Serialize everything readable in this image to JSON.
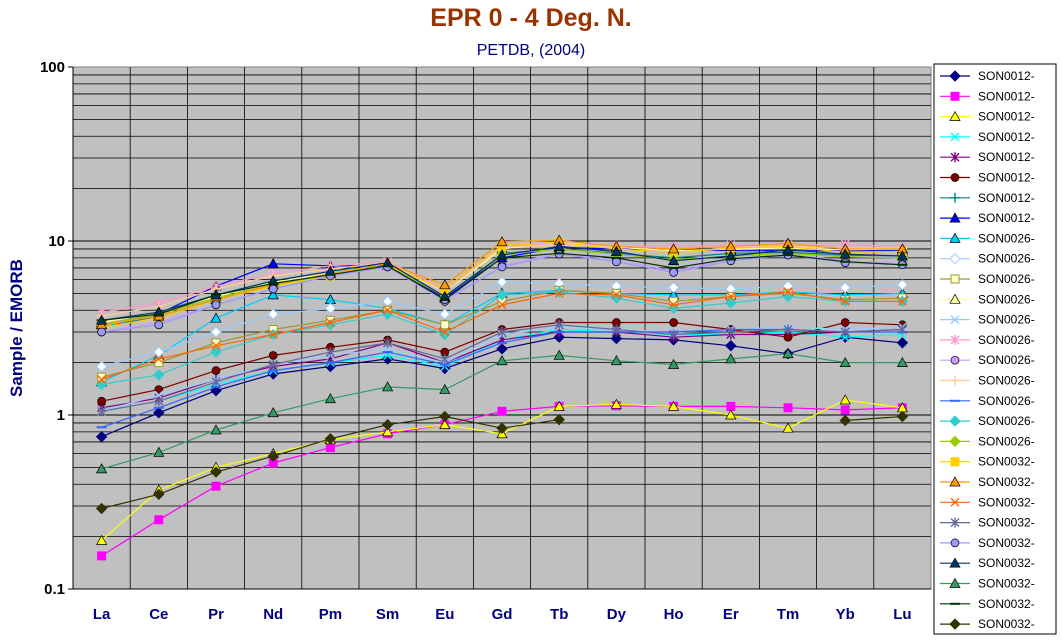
{
  "chart_data": {
    "type": "line",
    "title": "EPR 0 - 4 Deg. N.",
    "subtitle": "PETDB, (2004)",
    "xlabel": "",
    "ylabel": "Sample / EMORB",
    "yscale": "log",
    "ylim": [
      0.1,
      100
    ],
    "ytick_labels": [
      "0.1",
      "1",
      "10",
      "100"
    ],
    "grid": true,
    "legend_position": "right",
    "categories": [
      "La",
      "Ce",
      "Pr",
      "Nd",
      "Pm",
      "Sm",
      "Eu",
      "Gd",
      "Tb",
      "Dy",
      "Ho",
      "Er",
      "Tm",
      "Yb",
      "Lu"
    ],
    "series": [
      {
        "name": "SON0012-",
        "color": "#000080",
        "marker": "diamond",
        "values": [
          0.75,
          1.03,
          1.38,
          1.72,
          1.9,
          2.1,
          1.85,
          2.4,
          2.8,
          2.75,
          2.7,
          2.5,
          2.25,
          2.8,
          2.6
        ]
      },
      {
        "name": "SON0012-",
        "color": "#FF00FF",
        "marker": "square",
        "values": [
          0.155,
          0.25,
          0.39,
          0.53,
          0.65,
          0.78,
          0.88,
          1.05,
          1.12,
          1.13,
          1.12,
          1.12,
          1.1,
          1.07,
          1.1
        ]
      },
      {
        "name": "SON0012-",
        "color": "#FFFF00",
        "marker": "triangle",
        "values": [
          0.19,
          0.37,
          0.5,
          0.6,
          0.72,
          0.8,
          0.88,
          0.78,
          1.12,
          1.15,
          1.12,
          1.0,
          0.84,
          1.22,
          1.1
        ]
      },
      {
        "name": "SON0012-",
        "color": "#00FFFF",
        "marker": "x",
        "values": [
          1.05,
          1.2,
          1.5,
          1.8,
          2.0,
          2.2,
          1.9,
          2.7,
          3.1,
          3.0,
          2.9,
          2.9,
          3.0,
          2.8,
          2.9
        ]
      },
      {
        "name": "SON0012-",
        "color": "#800080",
        "marker": "star",
        "values": [
          1.1,
          1.25,
          1.6,
          1.9,
          2.1,
          2.6,
          2.0,
          2.7,
          3.0,
          3.0,
          2.8,
          2.9,
          2.9,
          3.0,
          3.1
        ]
      },
      {
        "name": "SON0012-",
        "color": "#800000",
        "marker": "circle",
        "values": [
          1.2,
          1.4,
          1.8,
          2.2,
          2.45,
          2.7,
          2.3,
          3.1,
          3.4,
          3.4,
          3.4,
          3.1,
          2.8,
          3.4,
          3.3
        ]
      },
      {
        "name": "SON0012-",
        "color": "#008080",
        "marker": "plus",
        "values": [
          3.2,
          3.7,
          4.6,
          5.6,
          6.3,
          7.3,
          4.5,
          8.5,
          9.0,
          8.5,
          8.0,
          8.5,
          8.6,
          8.3,
          8.2
        ]
      },
      {
        "name": "SON0012-",
        "color": "#0000FF",
        "marker": "triangle",
        "values": [
          3.3,
          3.8,
          5.5,
          7.4,
          7.2,
          7.2,
          4.7,
          8.0,
          9.2,
          9.0,
          9.0,
          8.8,
          8.8,
          8.8,
          8.8
        ]
      },
      {
        "name": "SON0026-",
        "color": "#00CCFF",
        "marker": "triangle",
        "values": [
          1.55,
          2.2,
          3.6,
          4.9,
          4.6,
          4.1,
          3.3,
          5.0,
          5.2,
          5.0,
          4.9,
          4.9,
          5.1,
          4.9,
          5.0
        ]
      },
      {
        "name": "SON0026-",
        "color": "#99CCFF",
        "marker": "diamond-open",
        "values": [
          1.9,
          2.3,
          3.0,
          3.8,
          4.1,
          4.5,
          3.8,
          5.8,
          5.7,
          5.5,
          5.4,
          5.3,
          5.5,
          5.4,
          5.6
        ]
      },
      {
        "name": "SON0026-",
        "color": "#999933",
        "marker": "square-open",
        "values": [
          1.65,
          2.0,
          2.6,
          3.1,
          3.5,
          4.0,
          3.3,
          4.5,
          5.2,
          5.0,
          4.5,
          4.8,
          5.0,
          4.6,
          4.7
        ]
      },
      {
        "name": "SON0026-",
        "color": "#FFFF99",
        "marker": "triangle",
        "values": [
          3.4,
          3.9,
          4.8,
          5.8,
          6.5,
          7.4,
          5.1,
          9.0,
          9.8,
          9.2,
          8.8,
          9.0,
          9.1,
          8.9,
          9.0
        ]
      },
      {
        "name": "SON0026-",
        "color": "#99CCFF",
        "marker": "x",
        "values": [
          1.05,
          1.3,
          1.6,
          1.95,
          2.2,
          2.4,
          2.0,
          2.9,
          3.2,
          3.1,
          3.0,
          3.1,
          3.2,
          3.1,
          3.2
        ]
      },
      {
        "name": "SON0026-",
        "color": "#FF99CC",
        "marker": "star",
        "values": [
          3.9,
          4.4,
          5.5,
          6.5,
          7.2,
          7.6,
          5.3,
          9.3,
          9.6,
          9.4,
          9.3,
          9.5,
          9.5,
          9.6,
          9.2
        ]
      },
      {
        "name": "SON0026-",
        "color": "#CC99FF",
        "marker": "circle",
        "values": [
          3.0,
          3.4,
          4.3,
          5.3,
          6.3,
          7.1,
          4.5,
          7.2,
          8.5,
          7.8,
          6.7,
          7.9,
          8.4,
          7.7,
          7.4
        ]
      },
      {
        "name": "SON0026-",
        "color": "#FFCC99",
        "marker": "plus",
        "values": [
          3.7,
          4.2,
          5.3,
          6.3,
          6.9,
          7.5,
          5.1,
          9.2,
          9.5,
          9.3,
          9.0,
          9.3,
          9.3,
          9.1,
          9.1
        ]
      },
      {
        "name": "SON0026-",
        "color": "#3366FF",
        "marker": "dash",
        "values": [
          0.85,
          1.1,
          1.45,
          1.8,
          2.0,
          2.3,
          1.95,
          2.6,
          3.0,
          3.0,
          3.0,
          3.1,
          3.1,
          3.0,
          3.0
        ]
      },
      {
        "name": "SON0026-",
        "color": "#33CCCC",
        "marker": "diamond",
        "values": [
          1.5,
          1.7,
          2.3,
          2.9,
          3.3,
          3.8,
          2.9,
          4.9,
          5.1,
          4.7,
          4.1,
          4.4,
          4.8,
          4.5,
          4.5
        ]
      },
      {
        "name": "SON0026-",
        "color": "#99CC00",
        "marker": "diamond",
        "values": [
          3.3,
          3.8,
          4.7,
          5.6,
          6.3,
          7.2,
          4.8,
          8.4,
          9.0,
          8.4,
          7.8,
          8.2,
          8.5,
          8.1,
          8.0
        ]
      },
      {
        "name": "SON0032-",
        "color": "#FFCC00",
        "marker": "square",
        "values": [
          3.2,
          3.6,
          4.6,
          5.5,
          6.3,
          7.2,
          5.3,
          9.4,
          9.8,
          9.0,
          8.6,
          9.1,
          9.3,
          8.6,
          8.7
        ]
      },
      {
        "name": "SON0032-",
        "color": "#FF9900",
        "marker": "triangle",
        "values": [
          3.3,
          3.7,
          4.6,
          5.6,
          6.5,
          7.4,
          5.6,
          9.9,
          10.1,
          9.3,
          9.0,
          9.3,
          9.7,
          9.0,
          9.0
        ]
      },
      {
        "name": "SON0032-",
        "color": "#FF6600",
        "marker": "x",
        "values": [
          1.6,
          2.1,
          2.5,
          2.9,
          3.4,
          4.0,
          3.0,
          4.3,
          5.0,
          4.9,
          4.3,
          4.8,
          5.1,
          4.5,
          4.5
        ]
      },
      {
        "name": "SON0032-",
        "color": "#666699",
        "marker": "star",
        "values": [
          1.05,
          1.2,
          1.55,
          1.95,
          2.3,
          2.6,
          2.1,
          3.0,
          3.3,
          3.1,
          2.9,
          3.0,
          3.1,
          3.0,
          3.1
        ]
      },
      {
        "name": "SON0032-",
        "color": "#9999FF",
        "marker": "circle",
        "values": [
          3.0,
          3.3,
          4.3,
          5.3,
          6.3,
          7.1,
          4.6,
          7.1,
          8.4,
          7.6,
          6.6,
          7.7,
          8.3,
          7.5,
          7.3
        ]
      },
      {
        "name": "SON0032-",
        "color": "#003366",
        "marker": "triangle",
        "values": [
          3.5,
          3.9,
          4.9,
          5.9,
          6.7,
          7.5,
          4.8,
          8.3,
          9.3,
          8.7,
          7.7,
          8.2,
          8.9,
          8.4,
          8.2
        ]
      },
      {
        "name": "SON0032-",
        "color": "#339966",
        "marker": "triangle",
        "values": [
          0.49,
          0.61,
          0.82,
          1.03,
          1.24,
          1.45,
          1.4,
          2.05,
          2.2,
          2.05,
          1.95,
          2.1,
          2.25,
          2.0,
          2.0
        ]
      },
      {
        "name": "SON0032-",
        "color": "#003300",
        "marker": "dash",
        "values": [
          3.5,
          3.8,
          4.9,
          5.7,
          6.4,
          7.2,
          4.6,
          8.0,
          8.5,
          8.0,
          7.0,
          7.9,
          8.3,
          7.6,
          7.3
        ]
      },
      {
        "name": "SON0032-",
        "color": "#333300",
        "marker": "diamond",
        "values": [
          0.29,
          0.35,
          0.47,
          0.58,
          0.73,
          0.88,
          0.98,
          0.84,
          0.94,
          null,
          null,
          null,
          null,
          0.93,
          0.98
        ]
      }
    ]
  }
}
